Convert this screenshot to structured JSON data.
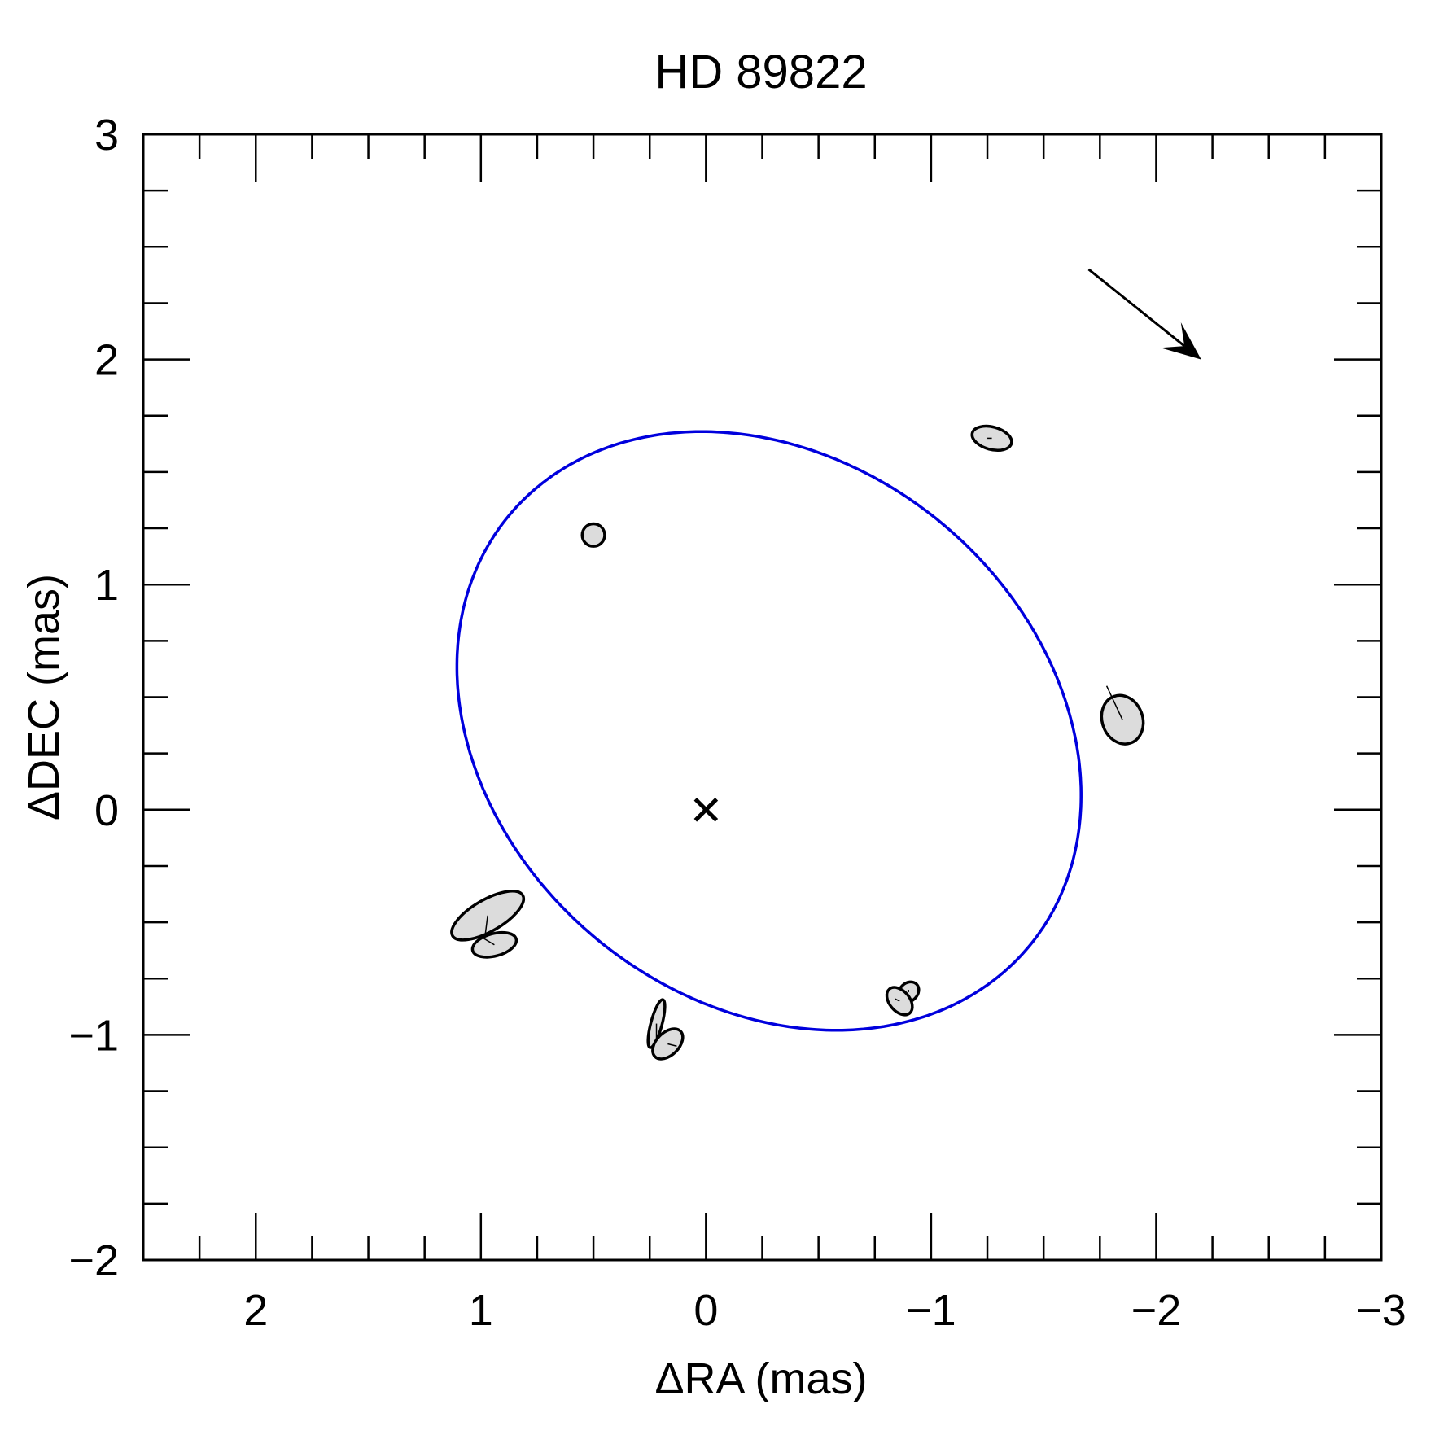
{
  "chart_data": {
    "type": "scatter",
    "title": "HD 89822",
    "xlabel": "ΔRA (mas)",
    "ylabel": "ΔDEC (mas)",
    "xlim": [
      2.5,
      -3
    ],
    "ylim": [
      -2,
      3
    ],
    "x_reversed": true,
    "grid": false,
    "legend": "none",
    "x_tick_labels": [
      "2",
      "1",
      "0",
      "−1",
      "−2",
      "−3"
    ],
    "x_tick_values": [
      2,
      1,
      0,
      -1,
      -2,
      -3
    ],
    "y_tick_labels": [
      "−2",
      "−1",
      "0",
      "1",
      "2",
      "3"
    ],
    "y_tick_values": [
      -2,
      -1,
      0,
      1,
      2,
      3
    ],
    "orbit": {
      "color": "#0000dd",
      "center": [
        -0.28,
        0.35
      ],
      "semi_axes": [
        1.5,
        1.2
      ],
      "rotation_deg": 39.5,
      "closed": true
    },
    "primary_marker": {
      "symbol": "x",
      "x": 0,
      "y": 0
    },
    "observations": [
      {
        "x": 0.5,
        "y": 1.22,
        "error_axes": [
          0.05,
          0.05
        ],
        "error_pa_deg": 0,
        "fit_x": 0.5,
        "fit_y": 1.22
      },
      {
        "x": -1.27,
        "y": 1.65,
        "error_axes": [
          0.09,
          0.05
        ],
        "error_pa_deg": -15,
        "fit_x": -1.25,
        "fit_y": 1.65
      },
      {
        "x": -1.85,
        "y": 0.4,
        "error_axes": [
          0.09,
          0.11
        ],
        "error_pa_deg": 20,
        "fit_x": -1.78,
        "fit_y": 0.55
      },
      {
        "x": 0.97,
        "y": -0.47,
        "error_axes": [
          0.18,
          0.07
        ],
        "error_pa_deg": 30,
        "fit_x": 0.98,
        "fit_y": -0.55
      },
      {
        "x": 0.94,
        "y": -0.6,
        "error_axes": [
          0.1,
          0.05
        ],
        "error_pa_deg": 15,
        "fit_x": 0.99,
        "fit_y": -0.57
      },
      {
        "x": 0.22,
        "y": -0.95,
        "error_axes": [
          0.11,
          0.025
        ],
        "error_pa_deg": 75,
        "fit_x": 0.22,
        "fit_y": -1.02
      },
      {
        "x": 0.17,
        "y": -1.04,
        "error_axes": [
          0.08,
          0.05
        ],
        "error_pa_deg": 45,
        "fit_x": 0.13,
        "fit_y": -1.05
      },
      {
        "x": -0.9,
        "y": -0.81,
        "error_axes": [
          0.05,
          0.04
        ],
        "error_pa_deg": 45,
        "fit_x": -0.9,
        "fit_y": -0.8
      },
      {
        "x": -0.86,
        "y": -0.85,
        "error_axes": [
          0.07,
          0.045
        ],
        "error_pa_deg": -50,
        "fit_x": -0.84,
        "fit_y": -0.84
      }
    ],
    "motion_arrow": {
      "from": [
        -1.7,
        2.4
      ],
      "to": [
        -2.2,
        2.0
      ]
    }
  }
}
